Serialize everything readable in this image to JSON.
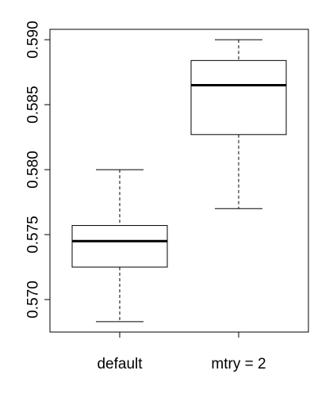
{
  "chart_data": {
    "type": "box",
    "title": "",
    "xlabel": "",
    "ylabel": "",
    "ylim": [
      0.5675,
      0.5908
    ],
    "y_ticks": [
      0.57,
      0.575,
      0.58,
      0.585,
      0.59
    ],
    "y_tick_labels": [
      "0.570",
      "0.575",
      "0.580",
      "0.585",
      "0.590"
    ],
    "grid": false,
    "categories": [
      "default",
      "mtry = 2"
    ],
    "boxes": [
      {
        "category": "default",
        "whisker_low": 0.5683,
        "q1": 0.5725,
        "median": 0.5745,
        "q3": 0.5757,
        "whisker_high": 0.58
      },
      {
        "category": "mtry = 2",
        "whisker_low": 0.577,
        "q1": 0.5827,
        "median": 0.5865,
        "q3": 0.5884,
        "whisker_high": 0.59
      }
    ]
  }
}
